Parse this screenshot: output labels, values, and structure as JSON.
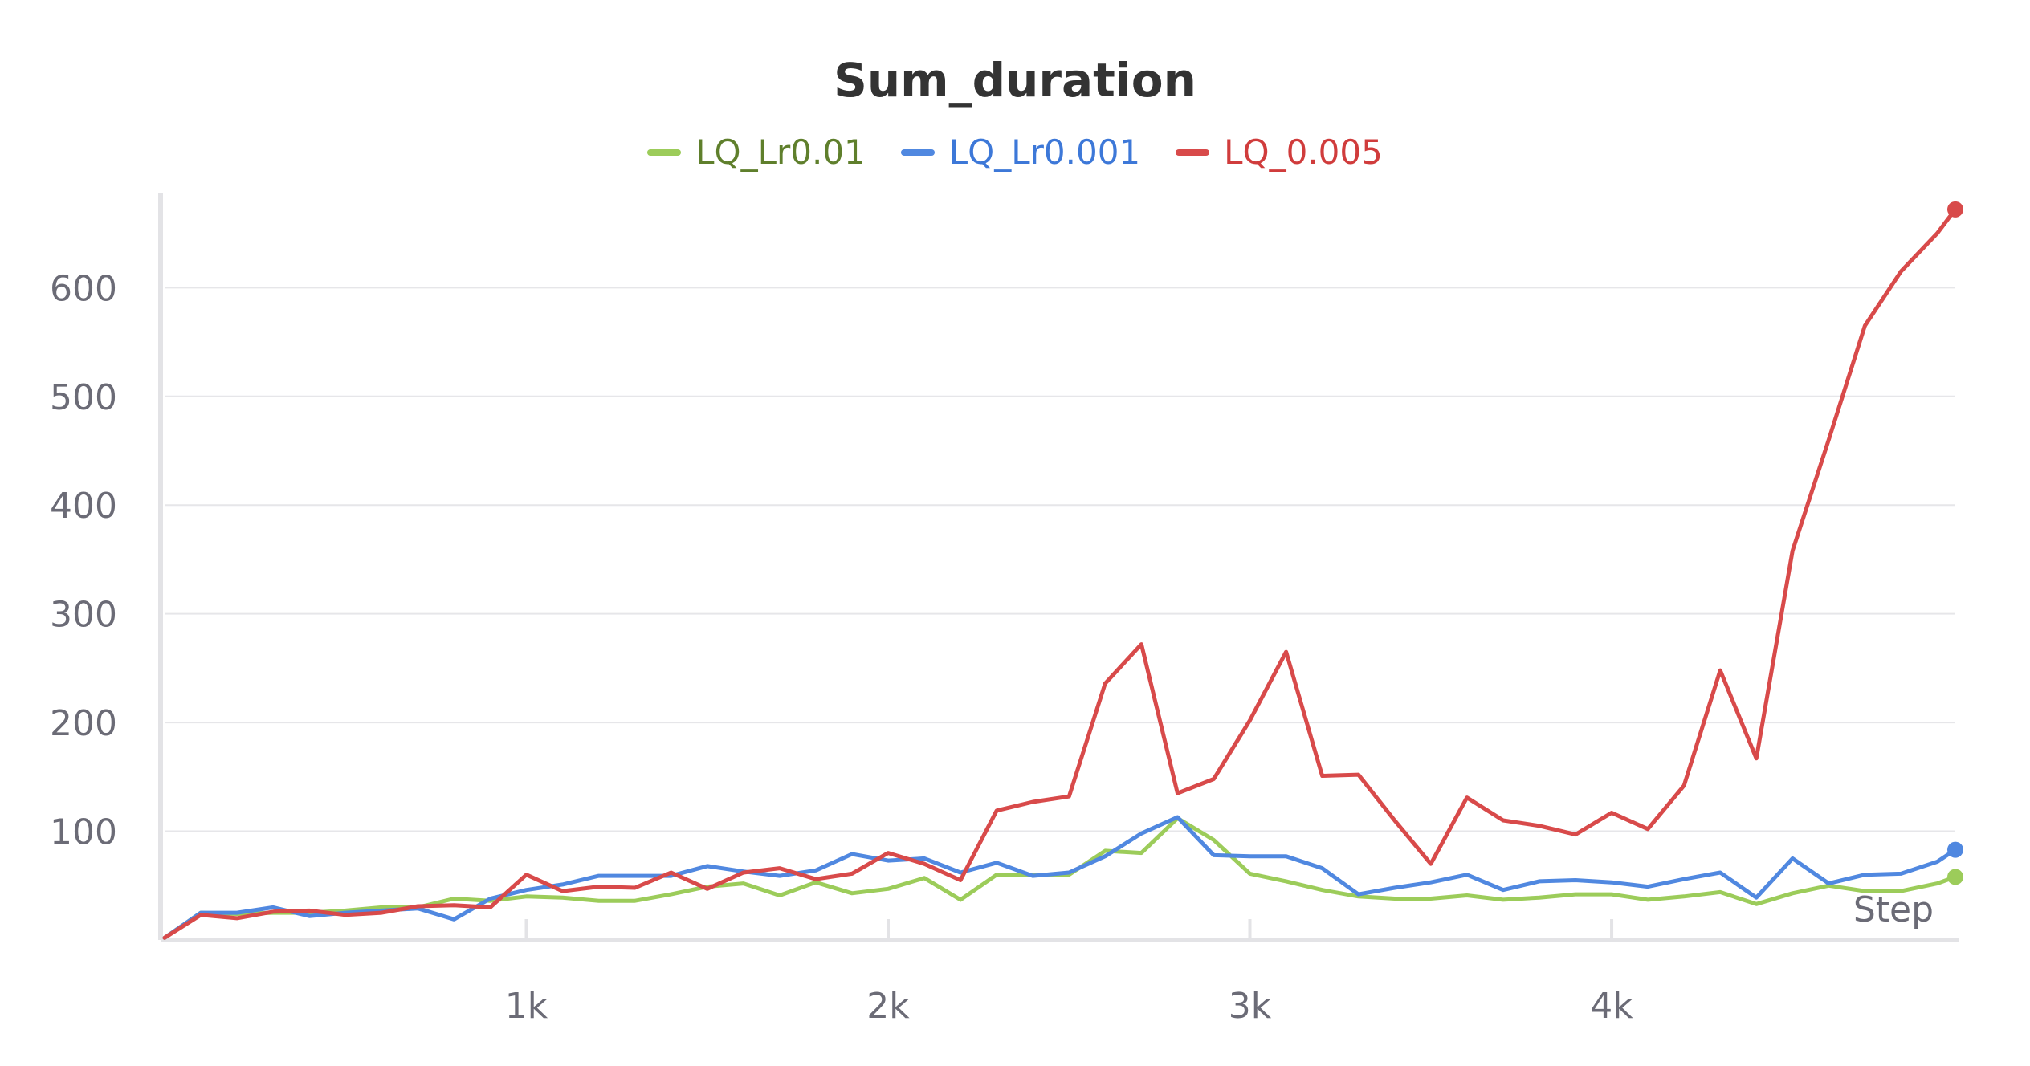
{
  "chart_data": {
    "type": "line",
    "title": "Sum_duration",
    "xlabel": "Step",
    "ylabel": "",
    "xlim": [
      0,
      4950
    ],
    "ylim": [
      0,
      680
    ],
    "x_ticks": [
      {
        "value": 1000,
        "label": "1k"
      },
      {
        "value": 2000,
        "label": "2k"
      },
      {
        "value": 3000,
        "label": "3k"
      },
      {
        "value": 4000,
        "label": "4k"
      }
    ],
    "y_ticks": [
      {
        "value": 100,
        "label": "100"
      },
      {
        "value": 200,
        "label": "200"
      },
      {
        "value": 300,
        "label": "300"
      },
      {
        "value": 400,
        "label": "400"
      },
      {
        "value": 500,
        "label": "500"
      },
      {
        "value": 600,
        "label": "600"
      }
    ],
    "grid": true,
    "legend_position": "top-center",
    "x": [
      0,
      100,
      200,
      300,
      400,
      500,
      600,
      700,
      800,
      900,
      1000,
      1100,
      1200,
      1300,
      1400,
      1500,
      1600,
      1700,
      1800,
      1900,
      2000,
      2100,
      2200,
      2300,
      2400,
      2500,
      2600,
      2700,
      2800,
      2900,
      3000,
      3100,
      3200,
      3300,
      3400,
      3500,
      3600,
      3700,
      3800,
      3900,
      4000,
      4100,
      4200,
      4300,
      4400,
      4500,
      4600,
      4700,
      4800,
      4900,
      4950
    ],
    "series": [
      {
        "name": "LQ_Lr0.01",
        "color": "#9ccc5a",
        "text_color": "#5f7f2c",
        "values": [
          2,
          25,
          24,
          25,
          25,
          27,
          30,
          30,
          38,
          36,
          40,
          39,
          36,
          36,
          42,
          49,
          52,
          41,
          53,
          43,
          47,
          57,
          37,
          60,
          60,
          60,
          82,
          80,
          112,
          92,
          61,
          54,
          46,
          40,
          38,
          38,
          41,
          37,
          39,
          42,
          42,
          37,
          40,
          44,
          33,
          43,
          50,
          45,
          45,
          52,
          58
        ]
      },
      {
        "name": "LQ_Lr0.001",
        "color": "#5088e0",
        "text_color": "#3d78d8",
        "values": [
          2,
          25,
          25,
          30,
          22,
          25,
          27,
          29,
          19,
          38,
          46,
          51,
          59,
          59,
          59,
          68,
          63,
          59,
          64,
          79,
          73,
          75,
          62,
          71,
          59,
          62,
          77,
          98,
          113,
          78,
          77,
          77,
          66,
          42,
          48,
          53,
          60,
          46,
          54,
          55,
          53,
          49,
          56,
          62,
          39,
          75,
          52,
          60,
          61,
          72,
          83
        ]
      },
      {
        "name": "LQ_0.005",
        "color": "#d84a4a",
        "text_color": "#d03c3c",
        "values": [
          2,
          23,
          20,
          26,
          27,
          23,
          25,
          31,
          32,
          30,
          60,
          45,
          49,
          48,
          62,
          47,
          62,
          66,
          56,
          61,
          80,
          70,
          55,
          119,
          127,
          132,
          236,
          272,
          135,
          148,
          202,
          265,
          151,
          152,
          110,
          70,
          131,
          110,
          105,
          97,
          117,
          102,
          142,
          248,
          167,
          358,
          460,
          565,
          615,
          650,
          672
        ]
      }
    ]
  }
}
